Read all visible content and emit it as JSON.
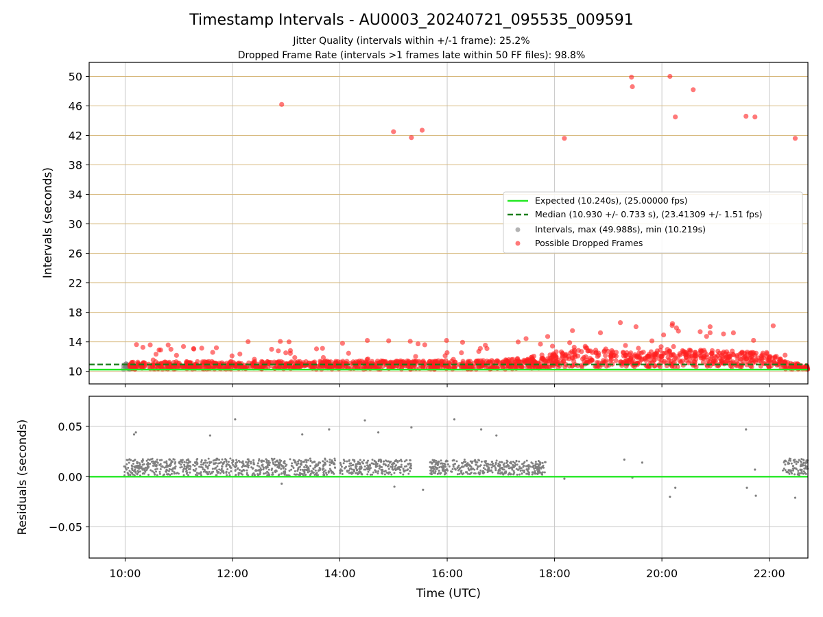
{
  "colors": {
    "expected": "#22e822",
    "median": "#1a7f1a",
    "intervals": "#808080",
    "dropped": "#ff2020",
    "hgrid_top": "#d6b77a",
    "grid": "#c8c8c8"
  },
  "chart_data": [
    {
      "type": "scatter",
      "title": "Timestamp Intervals - AU0003_20240721_095535_009591",
      "subtitle_lines": [
        "Jitter Quality (intervals within +/-1 frame): 25.2%",
        "Dropped Frame Rate (intervals >1 frames late within 50 FF files): 98.8%"
      ],
      "xlabel": "",
      "ylabel": "Intervals (seconds)",
      "x_unit": "hours UTC",
      "xlim": [
        9.33,
        22.72
      ],
      "ylim": [
        8.3,
        51.9
      ],
      "yticks": [
        10,
        14,
        18,
        22,
        26,
        30,
        34,
        38,
        42,
        46,
        50
      ],
      "grid": true,
      "legend_position": "center-right",
      "legend": [
        "Expected (10.240s), (25.00000 fps)",
        "Median (10.930 +/- 0.733 s), (23.41309 +/- 1.51 fps)",
        "Intervals, max (49.988s), min (10.219s)",
        "Possible Dropped Frames"
      ],
      "lines": [
        {
          "name": "Expected (10.240s), (25.00000 fps)",
          "y": 10.24,
          "style": "solid"
        },
        {
          "name": "Median (10.930 +/- 0.733 s), (23.41309 +/- 1.51 fps)",
          "y": 10.93,
          "style": "dashed"
        }
      ],
      "outliers": [
        {
          "x": "12:55",
          "y": 46.2
        },
        {
          "x": "15:00",
          "y": 42.5
        },
        {
          "x": "15:20",
          "y": 41.7
        },
        {
          "x": "15:32",
          "y": 42.7
        },
        {
          "x": "18:11",
          "y": 41.6
        },
        {
          "x": "19:26",
          "y": 49.9
        },
        {
          "x": "19:27",
          "y": 48.6
        },
        {
          "x": "20:09",
          "y": 50.0
        },
        {
          "x": "20:15",
          "y": 44.5
        },
        {
          "x": "20:35",
          "y": 48.2
        },
        {
          "x": "21:34",
          "y": 44.6
        },
        {
          "x": "21:44",
          "y": 44.5
        },
        {
          "x": "22:29",
          "y": 41.6
        }
      ],
      "band_profile": [
        {
          "x": "10:00",
          "y_low": 10.3,
          "y_high": 11.3
        },
        {
          "x": "14:00",
          "y_low": 10.3,
          "y_high": 11.4
        },
        {
          "x": "17:00",
          "y_low": 10.3,
          "y_high": 11.5
        },
        {
          "x": "17:45",
          "y_low": 10.4,
          "y_high": 12.2
        },
        {
          "x": "18:30",
          "y_low": 10.6,
          "y_high": 13.5
        },
        {
          "x": "19:30",
          "y_low": 10.5,
          "y_high": 12.5
        },
        {
          "x": "20:00",
          "y_low": 10.6,
          "y_high": 12.9
        },
        {
          "x": "21:00",
          "y_low": 10.6,
          "y_high": 12.9
        },
        {
          "x": "22:00",
          "y_low": 10.5,
          "y_high": 12.6
        },
        {
          "x": "22:20",
          "y_low": 10.3,
          "y_high": 11.3
        },
        {
          "x": "22:43",
          "y_low": 10.3,
          "y_high": 10.8
        }
      ]
    },
    {
      "type": "scatter",
      "ylabel": "Residuals (seconds)",
      "xlabel": "Time (UTC)",
      "xlim": [
        9.33,
        22.72
      ],
      "ylim": [
        -0.081,
        0.08
      ],
      "yticks": [
        0.05,
        0.0,
        -0.05
      ],
      "ytick_labels": [
        "0.05",
        "0.00",
        "−0.05"
      ],
      "xticks": [
        "10:00",
        "12:00",
        "14:00",
        "16:00",
        "18:00",
        "20:00",
        "22:00"
      ],
      "grid": true,
      "zero_line": 0.0,
      "points": [
        {
          "x": "10:10",
          "y": 0.042
        },
        {
          "x": "10:12",
          "y": 0.044
        },
        {
          "x": "11:35",
          "y": 0.041
        },
        {
          "x": "12:03",
          "y": 0.057
        },
        {
          "x": "12:55",
          "y": -0.007
        },
        {
          "x": "13:18",
          "y": 0.042
        },
        {
          "x": "13:48",
          "y": 0.047
        },
        {
          "x": "14:28",
          "y": 0.056
        },
        {
          "x": "14:43",
          "y": 0.044
        },
        {
          "x": "15:01",
          "y": -0.01
        },
        {
          "x": "15:20",
          "y": 0.049
        },
        {
          "x": "15:33",
          "y": -0.013
        },
        {
          "x": "16:08",
          "y": 0.057
        },
        {
          "x": "16:38",
          "y": 0.047
        },
        {
          "x": "16:55",
          "y": 0.041
        },
        {
          "x": "18:11",
          "y": -0.002
        },
        {
          "x": "19:18",
          "y": 0.017
        },
        {
          "x": "19:27",
          "y": -0.001
        },
        {
          "x": "19:38",
          "y": 0.014
        },
        {
          "x": "20:09",
          "y": -0.02
        },
        {
          "x": "20:15",
          "y": -0.011
        },
        {
          "x": "21:34",
          "y": 0.047
        },
        {
          "x": "21:35",
          "y": -0.011
        },
        {
          "x": "21:44",
          "y": 0.007
        },
        {
          "x": "21:45",
          "y": -0.019
        },
        {
          "x": "22:29",
          "y": -0.021
        }
      ],
      "clusters": [
        {
          "from": "09:58",
          "to": "13:55",
          "y_low": 0.001,
          "y_high": 0.018
        },
        {
          "from": "14:00",
          "to": "15:20",
          "y_low": 0.002,
          "y_high": 0.017
        },
        {
          "from": "15:40",
          "to": "16:50",
          "y_low": 0.002,
          "y_high": 0.017
        },
        {
          "from": "16:50",
          "to": "17:50",
          "y_low": 0.002,
          "y_high": 0.016
        },
        {
          "from": "22:15",
          "to": "22:43",
          "y_low": 0.001,
          "y_high": 0.018
        }
      ]
    }
  ]
}
